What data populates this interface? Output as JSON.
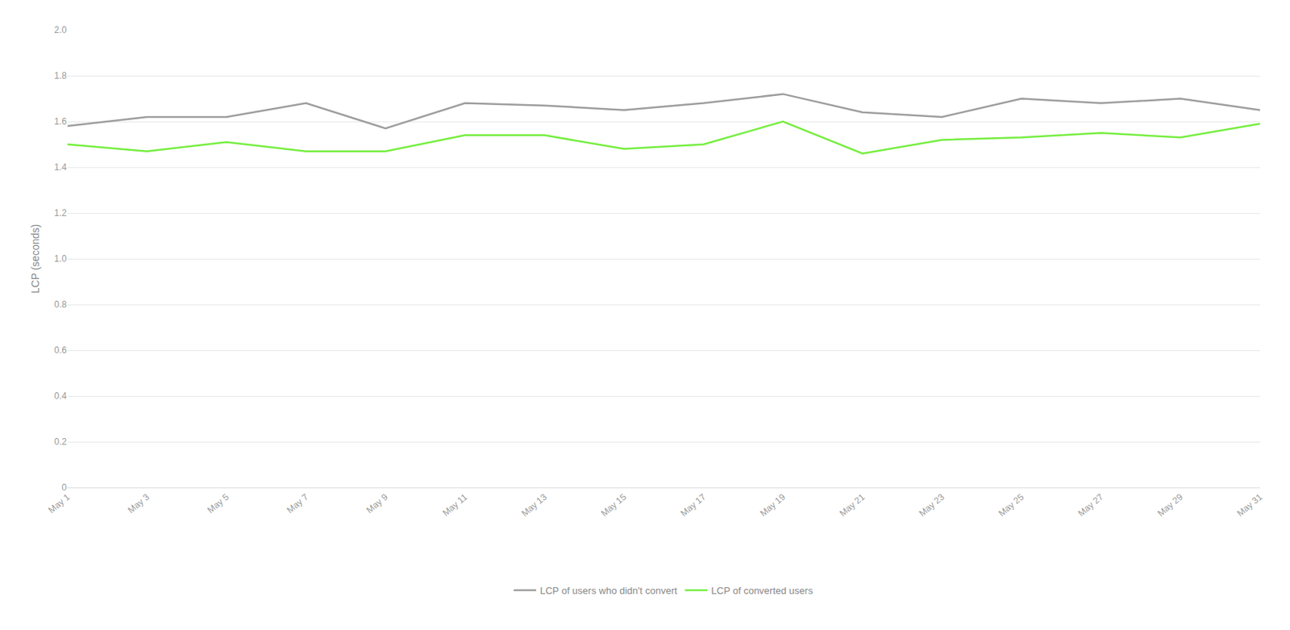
{
  "chart_data": {
    "type": "line",
    "categories": [
      "May 1",
      "May 3",
      "May 5",
      "May 7",
      "May 9",
      "May 11",
      "May 13",
      "May 15",
      "May 17",
      "May 19",
      "May 21",
      "May 23",
      "May 25",
      "May 27",
      "May 29",
      "May 31"
    ],
    "series": [
      {
        "name": "LCP of users who didn't convert",
        "color": "#9e9e9e",
        "values": [
          1.58,
          1.62,
          1.62,
          1.68,
          1.57,
          1.68,
          1.67,
          1.65,
          1.68,
          1.72,
          1.64,
          1.62,
          1.7,
          1.68,
          1.7,
          1.65
        ]
      },
      {
        "name": "LCP of converted users",
        "color": "#76ee40",
        "values": [
          1.5,
          1.47,
          1.51,
          1.47,
          1.47,
          1.54,
          1.54,
          1.48,
          1.5,
          1.6,
          1.46,
          1.52,
          1.53,
          1.55,
          1.53,
          1.59
        ]
      }
    ],
    "y_label": "LCP (seconds)",
    "ylim": [
      0,
      2.0
    ],
    "yticks": [
      0,
      0.2,
      0.4,
      0.6,
      0.8,
      {
        "value": 1,
        "label": "1.0"
      },
      1.2,
      1.4,
      1.6,
      1.8,
      {
        "value": 2,
        "label": "2.0"
      }
    ],
    "grid": true,
    "legend": "bottom"
  }
}
